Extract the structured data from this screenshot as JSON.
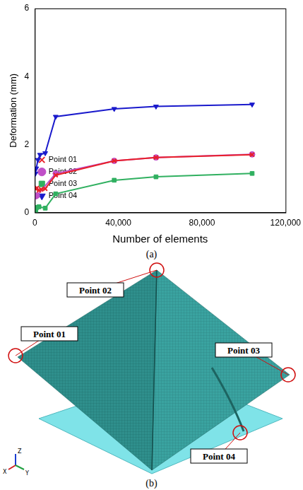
{
  "chart_data": {
    "type": "line",
    "x_label": "Number of elements",
    "y_label": "Deformation (mm)",
    "xlim": [
      0,
      120000
    ],
    "xticks": [
      0,
      {
        "value": 40000,
        "label": "40,000"
      },
      {
        "value": 80000,
        "label": "80,000"
      },
      {
        "value": 120000,
        "label": "120,000"
      }
    ],
    "ylim": [
      0,
      6
    ],
    "yticks": [
      0,
      2,
      4,
      6
    ],
    "grid": false,
    "legend": "upper right",
    "series": [
      {
        "name": "Point 01",
        "color": "#e8202a",
        "marker": "x",
        "x": [
          500,
          1000,
          2000,
          3000,
          5000,
          10000,
          38000,
          58000,
          104000
        ],
        "values": [
          0.7,
          0.72,
          0.65,
          0.68,
          0.7,
          1.1,
          1.52,
          1.62,
          1.7
        ]
      },
      {
        "name": "Point 02",
        "color": "#c050c8",
        "marker": "circle",
        "x": [
          500,
          1000,
          10000,
          38000,
          58000,
          104000
        ],
        "values": [
          0.48,
          0.5,
          1.15,
          1.52,
          1.62,
          1.71
        ]
      },
      {
        "name": "Point 03",
        "color": "#30b060",
        "marker": "square",
        "x": [
          500,
          1000,
          2000,
          5000,
          10000,
          38000,
          58000,
          104000
        ],
        "values": [
          0.05,
          0.15,
          0.17,
          0.13,
          0.55,
          0.95,
          1.05,
          1.15
        ]
      },
      {
        "name": "Point 04",
        "color": "#1a1acc",
        "marker": "triangle-down",
        "x": [
          300,
          700,
          1500,
          2500,
          5000,
          10000,
          38000,
          58000,
          104000
        ],
        "values": [
          1.15,
          1.3,
          1.55,
          1.7,
          1.75,
          2.82,
          3.05,
          3.12,
          3.18
        ]
      }
    ]
  },
  "figure": {
    "caption_a": "(a)",
    "caption_b": "(b)",
    "callouts": [
      "Point 02",
      "Point 01",
      "Point 03",
      "Point 04"
    ],
    "triad": [
      "X",
      "Y",
      "Z"
    ]
  }
}
